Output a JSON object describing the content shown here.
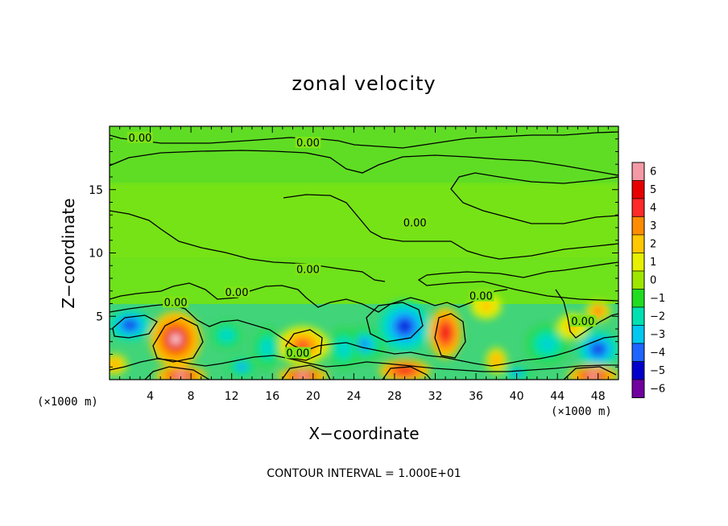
{
  "chart_data": {
    "type": "heatmap",
    "title": "zonal velocity",
    "xlabel": "X−coordinate",
    "ylabel": "Z−coordinate",
    "x_unit": "(×1000 m)",
    "z_unit": "(×1000 m)",
    "xlim": [
      0,
      50
    ],
    "ylim": [
      0,
      20
    ],
    "x_ticks": [
      "4",
      "8",
      "12",
      "16",
      "20",
      "24",
      "28",
      "32",
      "36",
      "40",
      "44",
      "48"
    ],
    "x_tick_values": [
      4,
      8,
      12,
      16,
      20,
      24,
      28,
      32,
      36,
      40,
      44,
      48
    ],
    "y_ticks": [
      "5",
      "10",
      "15"
    ],
    "y_tick_values": [
      5,
      10,
      15
    ],
    "colorbar": {
      "ticks": [
        "6",
        "5",
        "4",
        "3",
        "2",
        "1",
        "0",
        "−1",
        "−2",
        "−3",
        "−4",
        "−5",
        "−6"
      ],
      "values": [
        6,
        5,
        4,
        3,
        2,
        1,
        0,
        -1,
        -2,
        -3,
        -4,
        -5,
        -6
      ],
      "colors": [
        "#f49aa6",
        "#e80000",
        "#ff2a2a",
        "#ff8c00",
        "#ffc800",
        "#e6f000",
        "#9ee600",
        "#22dc22",
        "#00e0b0",
        "#00c8f0",
        "#1e64ff",
        "#0000cc",
        "#7000a0"
      ]
    },
    "contour_labels": [
      "0.00",
      "0.00",
      "0.00",
      "0.00",
      "0.00",
      "0.00",
      "0.00",
      "0.00",
      "0.00"
    ],
    "contour_label_positions": [
      [
        3,
        19.0
      ],
      [
        19.5,
        18.6
      ],
      [
        30,
        12.3
      ],
      [
        19.5,
        8.6
      ],
      [
        6.5,
        6.0
      ],
      [
        12.5,
        6.8
      ],
      [
        18.5,
        2.0
      ],
      [
        36.5,
        6.5
      ],
      [
        46.5,
        4.5
      ]
    ],
    "features": [
      {
        "x": 6.5,
        "z": 3.2,
        "value": 6,
        "r": [
          2.5,
          2.2
        ]
      },
      {
        "x": 2.0,
        "z": 4.3,
        "value": -5,
        "r": [
          2.0,
          1.2
        ]
      },
      {
        "x": 19.0,
        "z": 2.7,
        "value": 4,
        "r": [
          2.5,
          1.5
        ]
      },
      {
        "x": 25.0,
        "z": 2.8,
        "value": -4,
        "r": [
          2.0,
          1.3
        ]
      },
      {
        "x": 29.0,
        "z": 4.2,
        "value": -5,
        "r": [
          2.5,
          2.0
        ]
      },
      {
        "x": 33.0,
        "z": 3.7,
        "value": 4.5,
        "r": [
          1.6,
          2.0
        ]
      },
      {
        "x": 43.0,
        "z": 2.8,
        "value": -3,
        "r": [
          2.0,
          1.5
        ]
      },
      {
        "x": 48.0,
        "z": 2.4,
        "value": -5,
        "r": [
          2.0,
          1.4
        ]
      },
      {
        "x": 48.0,
        "z": 5.4,
        "value": 4,
        "r": [
          1.2,
          0.8
        ]
      },
      {
        "x": 45.5,
        "z": 4.2,
        "value": 2.5,
        "r": [
          1.5,
          1.0
        ]
      },
      {
        "x": 7.0,
        "z": 0.3,
        "value": 6,
        "r": [
          2.5,
          0.8
        ]
      },
      {
        "x": 19.0,
        "z": 0.3,
        "value": 6,
        "r": [
          2.5,
          0.7
        ]
      },
      {
        "x": 29.0,
        "z": 0.7,
        "value": 5,
        "r": [
          2.5,
          0.9
        ]
      },
      {
        "x": 47.5,
        "z": 0.3,
        "value": 6,
        "r": [
          2.5,
          0.8
        ]
      },
      {
        "x": 13.0,
        "z": 1.0,
        "value": -4,
        "r": [
          1.3,
          0.8
        ]
      },
      {
        "x": 15.5,
        "z": 2.5,
        "value": -3,
        "r": [
          1.3,
          1.5
        ]
      },
      {
        "x": 11.5,
        "z": 3.5,
        "value": -3,
        "r": [
          1.5,
          1.0
        ]
      },
      {
        "x": 0.5,
        "z": 1.2,
        "value": 3,
        "r": [
          1.2,
          0.8
        ]
      },
      {
        "x": 37.0,
        "z": 5.8,
        "value": 2,
        "r": [
          1.5,
          1.0
        ]
      },
      {
        "x": 38.0,
        "z": 1.5,
        "value": 3,
        "r": [
          1.0,
          1.0
        ]
      },
      {
        "x": 23.0,
        "z": 2.5,
        "value": -3,
        "r": [
          1.5,
          1.5
        ]
      },
      {
        "x": 40.0,
        "z": 0.5,
        "value": -4,
        "r": [
          1.5,
          0.6
        ]
      }
    ]
  },
  "footer": {
    "contour_interval": "CONTOUR INTERVAL = 1.000E+01"
  }
}
